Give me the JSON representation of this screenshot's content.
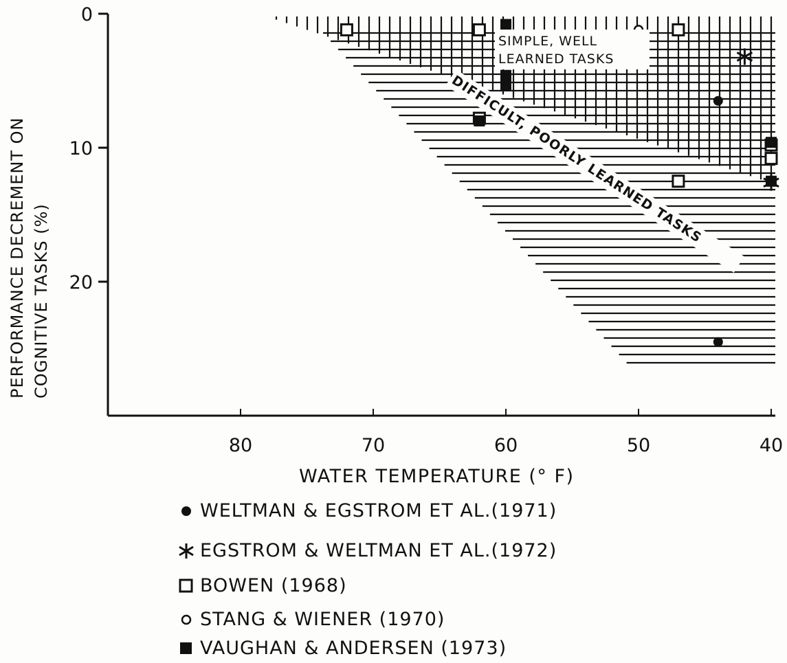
{
  "chart_data": {
    "type": "scatter",
    "xlabel": "WATER TEMPERATURE (° F)",
    "ylabel_line1": "PERFORMANCE DECREMENT ON",
    "ylabel_line2": "COGNITIVE TASKS (%)",
    "xlim": [
      90,
      40
    ],
    "ylim": [
      0,
      30
    ],
    "x_ticks": [
      "80",
      "70",
      "60",
      "50",
      "40"
    ],
    "x_tick_values": [
      80,
      70,
      60,
      50,
      40
    ],
    "y_ticks": [
      "0",
      "10",
      "20"
    ],
    "y_tick_values": [
      0,
      10,
      20
    ],
    "region_labels": {
      "simple_line1": "SIMPLE, WELL",
      "simple_line2": "LEARNED TASKS",
      "difficult": "DIFFICULT, POORLY LEARNED TASKS"
    },
    "legend_position": "bottom",
    "series": [
      {
        "name": "WELTMAN & EGSTROM ET AL.(1971)",
        "marker": "filled-circle",
        "points": [
          [
            44,
            6.5
          ],
          [
            44,
            24.5
          ]
        ]
      },
      {
        "name": "EGSTROM & WELTMAN ET AL.(1972)",
        "marker": "asterisk",
        "points": [
          [
            42,
            3.2
          ],
          [
            40,
            12.6
          ]
        ]
      },
      {
        "name": "BOWEN (1968)",
        "marker": "open-square",
        "points": [
          [
            72,
            1.2
          ],
          [
            62,
            1.2
          ],
          [
            47,
            1.2
          ],
          [
            62,
            7.8
          ],
          [
            47,
            12.5
          ],
          [
            40,
            9.8
          ],
          [
            40,
            10.8
          ]
        ]
      },
      {
        "name": "STANG & WIENER (1970)",
        "marker": "open-circle",
        "points": [
          [
            50,
            1.2
          ]
        ]
      },
      {
        "name": "VAUGHAN & ANDERSEN (1973)",
        "marker": "filled-square",
        "points": [
          [
            60,
            0.8
          ],
          [
            60,
            4.6
          ],
          [
            60,
            5.3
          ],
          [
            62,
            8.0
          ],
          [
            40,
            9.6
          ],
          [
            40,
            12.5
          ]
        ]
      }
    ]
  },
  "legend": {
    "items": [
      {
        "label": "WELTMAN & EGSTROM ET AL.(1971)"
      },
      {
        "label": "EGSTROM & WELTMAN ET AL.(1972)"
      },
      {
        "label": "BOWEN (1968)"
      },
      {
        "label": "STANG & WIENER (1970)"
      },
      {
        "label": "VAUGHAN & ANDERSEN (1973)"
      }
    ]
  },
  "colors": {
    "ink": "#111111",
    "paper": "#fdfdfb"
  }
}
